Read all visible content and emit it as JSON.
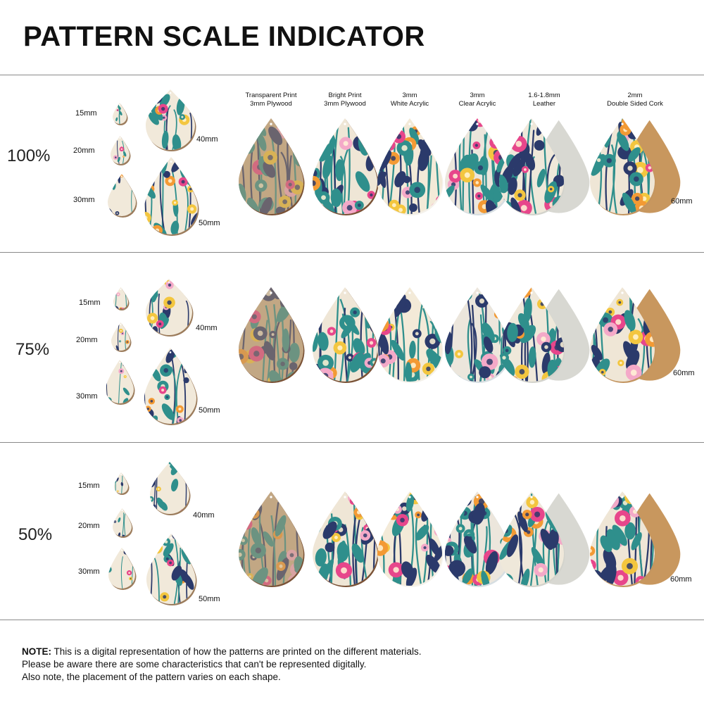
{
  "title": "PATTERN SCALE INDICATOR",
  "materials": [
    {
      "line1": "Transparent Print",
      "line2": "3mm Plywood",
      "edge": "#7a5236",
      "tint": "#cbb393",
      "icon": "teardrop-plywood-transparent"
    },
    {
      "line1": "Bright Print",
      "line2": "3mm Plywood",
      "edge": "#7a5236",
      "tint": "#efe6d6",
      "icon": "teardrop-plywood-bright"
    },
    {
      "line1": "3mm",
      "line2": "White Acrylic",
      "edge": "#f4f1ea",
      "tint": "#f3ead8",
      "icon": "teardrop-white-acrylic"
    },
    {
      "line1": "3mm",
      "line2": "Clear Acrylic",
      "edge": "#d6dee2",
      "tint": "#ece6dc",
      "icon": "teardrop-clear-acrylic"
    },
    {
      "line1": "1.6-1.8mm",
      "line2": "Leather",
      "edge": "#d3d3cc",
      "tint": "#efe8da",
      "icon": "teardrop-leather"
    },
    {
      "line1": "2mm",
      "line2": "Double Sided Cork",
      "edge": "#c39560",
      "tint": "#efe6d6",
      "icon": "teardrop-cork"
    }
  ],
  "sections": [
    {
      "scale": "100%",
      "sizes": [
        "15mm",
        "20mm",
        "30mm",
        "40mm",
        "50mm"
      ],
      "main_size": "60mm"
    },
    {
      "scale": "75%",
      "sizes": [
        "15mm",
        "20mm",
        "30mm",
        "40mm",
        "50mm"
      ],
      "main_size": "60mm"
    },
    {
      "scale": "50%",
      "sizes": [
        "15mm",
        "20mm",
        "30mm",
        "40mm",
        "50mm"
      ],
      "main_size": "60mm"
    }
  ],
  "note": {
    "label": "NOTE:",
    "line1": " This is a digital representation of how the patterns are printed on the different materials.",
    "line2": "Please be aware there are some characteristics that can't be represented digitally.",
    "line3": "Also note, the placement of the pattern varies on each shape."
  },
  "colors": {
    "pink": "#e7468b",
    "orange": "#f39a34",
    "yellow": "#f3c63f",
    "teal": "#2f8f8c",
    "navy": "#2b3a6b",
    "light_pink": "#f4a9c8",
    "leather": "#d8d8d2",
    "cork": "#c8975e"
  }
}
